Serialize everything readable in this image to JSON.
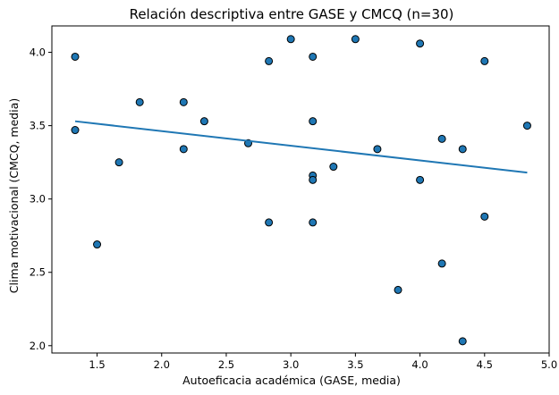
{
  "chart_data": {
    "type": "scatter",
    "title": "Relación descriptiva entre GASE y CMCQ (n=30)",
    "xlabel": "Autoeficacia académica (GASE, media)",
    "ylabel": "Clima motivacional (CMCQ, media)",
    "xlim": [
      1.15,
      5.0
    ],
    "ylim": [
      1.95,
      4.18
    ],
    "xticks": [
      "1.5",
      "2.0",
      "2.5",
      "3.0",
      "3.5",
      "4.0",
      "4.5",
      "5.0"
    ],
    "yticks": [
      "2.0",
      "2.5",
      "3.0",
      "3.5",
      "4.0"
    ],
    "grid": false,
    "point_color": "#1f77b4",
    "points": [
      {
        "x": 1.33,
        "y": 3.97
      },
      {
        "x": 1.33,
        "y": 3.47
      },
      {
        "x": 1.5,
        "y": 2.69
      },
      {
        "x": 1.67,
        "y": 3.25
      },
      {
        "x": 1.83,
        "y": 3.66
      },
      {
        "x": 2.17,
        "y": 3.66
      },
      {
        "x": 2.17,
        "y": 3.34
      },
      {
        "x": 2.33,
        "y": 3.53
      },
      {
        "x": 2.67,
        "y": 3.38
      },
      {
        "x": 2.83,
        "y": 3.94
      },
      {
        "x": 2.83,
        "y": 2.84
      },
      {
        "x": 3.0,
        "y": 4.09
      },
      {
        "x": 3.17,
        "y": 3.97
      },
      {
        "x": 3.17,
        "y": 3.53
      },
      {
        "x": 3.17,
        "y": 3.16
      },
      {
        "x": 3.17,
        "y": 3.13
      },
      {
        "x": 3.17,
        "y": 2.84
      },
      {
        "x": 3.33,
        "y": 3.22
      },
      {
        "x": 3.5,
        "y": 4.09
      },
      {
        "x": 3.67,
        "y": 3.34
      },
      {
        "x": 3.83,
        "y": 2.38
      },
      {
        "x": 4.0,
        "y": 4.06
      },
      {
        "x": 4.0,
        "y": 3.13
      },
      {
        "x": 4.17,
        "y": 3.41
      },
      {
        "x": 4.17,
        "y": 2.56
      },
      {
        "x": 4.33,
        "y": 3.34
      },
      {
        "x": 4.33,
        "y": 2.03
      },
      {
        "x": 4.5,
        "y": 3.94
      },
      {
        "x": 4.5,
        "y": 2.88
      },
      {
        "x": 4.83,
        "y": 3.5
      }
    ],
    "trendline": {
      "x": [
        1.33,
        4.83
      ],
      "y": [
        3.53,
        3.18
      ]
    }
  }
}
